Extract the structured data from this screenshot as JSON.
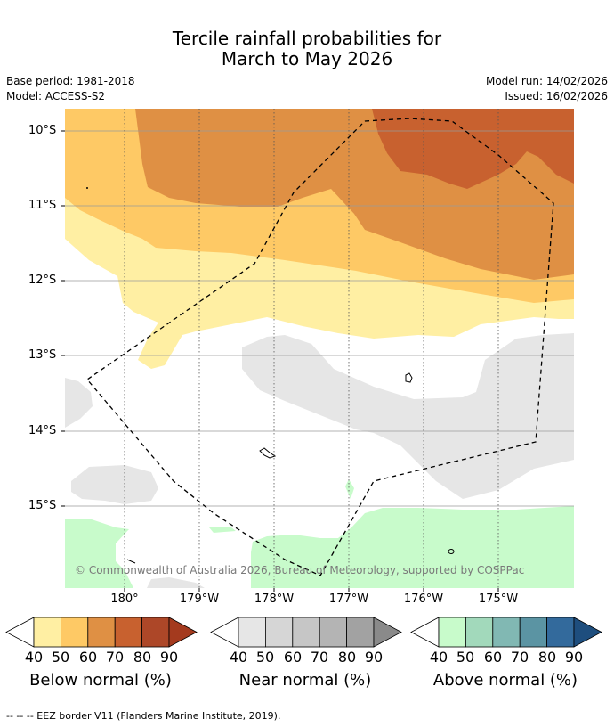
{
  "title": {
    "line1": "Tercile rainfall probabilities for",
    "line2": "March to May 2026"
  },
  "meta": {
    "base_period": "Base period: 1981-2018",
    "model": "Model: ACCESS-S2",
    "model_run": "Model run: 14/02/2026",
    "issued": "Issued: 16/02/2026"
  },
  "map": {
    "lat_labels": [
      "10°S",
      "11°S",
      "12°S",
      "13°S",
      "14°S",
      "15°S"
    ],
    "lon_labels": [
      "180°",
      "179°W",
      "178°W",
      "177°W",
      "176°W",
      "175°W"
    ],
    "copyright": "© Commonwealth of Australia 2026, Bureau of Meteorology, supported by COSPPac"
  },
  "colorbars": [
    {
      "title": "Below normal (%)",
      "ticks": [
        "40",
        "50",
        "60",
        "70",
        "80",
        "90"
      ],
      "colors": [
        "#ffefa3",
        "#fec965",
        "#df9044",
        "#c8612f",
        "#ad4728",
        "#a43a1e"
      ]
    },
    {
      "title": "Near normal (%)",
      "ticks": [
        "40",
        "50",
        "60",
        "70",
        "80",
        "90"
      ],
      "colors": [
        "#e6e6e6",
        "#d6d6d6",
        "#c6c6c6",
        "#b4b4b4",
        "#a2a2a2",
        "#8a8a8a"
      ]
    },
    {
      "title": "Above normal (%)",
      "ticks": [
        "40",
        "50",
        "60",
        "70",
        "80",
        "90"
      ],
      "colors": [
        "#c8fbcb",
        "#a2d9bb",
        "#81b8b3",
        "#5b94a3",
        "#336a9c",
        "#1e4e7e"
      ]
    }
  ],
  "footnote": "-- -- -- EEZ border V11 (Flanders Marine Institute, 2019)."
}
